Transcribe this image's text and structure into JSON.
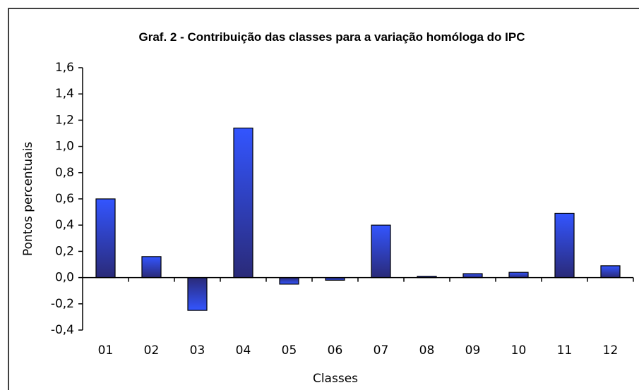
{
  "chart_data": {
    "type": "bar",
    "title": "Graf. 2 - Contribuição das classes para a variação homóloga do IPC",
    "x_label": "Classes",
    "y_label": "Pontos percentuais",
    "categories": [
      "01",
      "02",
      "03",
      "04",
      "05",
      "06",
      "07",
      "08",
      "09",
      "10",
      "11",
      "12"
    ],
    "values": [
      0.6,
      0.16,
      -0.25,
      1.14,
      -0.05,
      -0.02,
      0.4,
      0.01,
      0.03,
      0.04,
      0.49,
      0.09
    ],
    "color": "#3355ff",
    "ylim": [
      -0.4,
      1.6
    ],
    "yticks": [
      {
        "value": -0.4,
        "label": "-0,4"
      },
      {
        "value": -0.2,
        "label": "-0,2"
      },
      {
        "value": 0,
        "label": "0,0"
      },
      {
        "value": 0.2,
        "label": "0,2"
      },
      {
        "value": 0.4,
        "label": "0,4"
      },
      {
        "value": 0.6,
        "label": "0,6"
      },
      {
        "value": 0.8,
        "label": "0,8"
      },
      {
        "value": 1.0,
        "label": "1,0"
      },
      {
        "value": 1.2,
        "label": "1,2"
      },
      {
        "value": 1.4,
        "label": "1,4"
      },
      {
        "value": 1.6,
        "label": "1,6"
      }
    ],
    "grid": false
  }
}
